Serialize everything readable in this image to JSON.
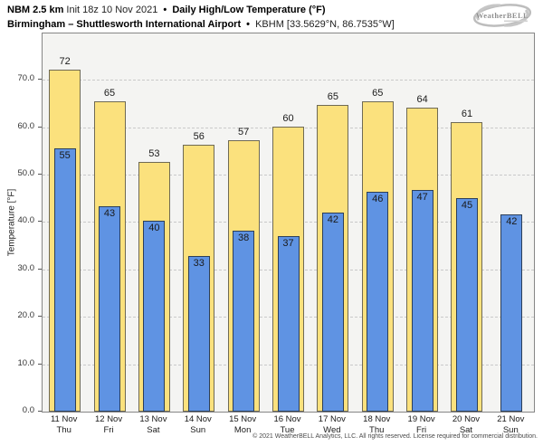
{
  "header": {
    "line1": {
      "model": "NBM 2.5 km",
      "init": "Init 18z 10 Nov 2021",
      "sep": "•",
      "product": "Daily High/Low Temperature (°F)"
    },
    "line2": {
      "station": "Birmingham – Shuttlesworth International Airport",
      "sep": "•",
      "id": "KBHM [33.5629°N, 86.7535°W]"
    }
  },
  "logo": {
    "text": "WeatherBELL"
  },
  "footer": {
    "text": "© 2021 WeatherBELL Analytics, LLC. All rights reserved. License required for commercial distribution."
  },
  "chart_data": {
    "type": "bar",
    "title": "NBM 2.5 km Daily High/Low Temperature (°F) — KBHM",
    "ylabel": "Temperature [°F]",
    "ylim": [
      0,
      79.8
    ],
    "yticks": [
      0,
      10,
      20,
      30,
      40,
      50,
      60,
      70
    ],
    "ytick_labels": [
      "0.0",
      "10.0",
      "20.0",
      "30.0",
      "40.0",
      "50.0",
      "60.0",
      "70.0"
    ],
    "grid": "horizontal-dashed",
    "legend_position": "none",
    "categories": [
      {
        "date": "11 Nov",
        "day": "Thu"
      },
      {
        "date": "12 Nov",
        "day": "Fri"
      },
      {
        "date": "13 Nov",
        "day": "Sat"
      },
      {
        "date": "14 Nov",
        "day": "Sun"
      },
      {
        "date": "15 Nov",
        "day": "Mon"
      },
      {
        "date": "16 Nov",
        "day": "Tue"
      },
      {
        "date": "17 Nov",
        "day": "Wed"
      },
      {
        "date": "18 Nov",
        "day": "Thu"
      },
      {
        "date": "19 Nov",
        "day": "Fri"
      },
      {
        "date": "20 Nov",
        "day": "Sat"
      },
      {
        "date": "21 Nov",
        "day": "Sun"
      }
    ],
    "series": [
      {
        "name": "Daily High",
        "color": "#fbe17d",
        "border": "#6f6a54",
        "values": [
          72,
          65,
          53,
          56,
          57,
          60,
          65,
          65,
          64,
          61,
          null
        ],
        "plot_values": [
          72.2,
          65.4,
          52.6,
          56.4,
          57.2,
          60.2,
          64.7,
          65.4,
          64.2,
          61.0,
          null
        ]
      },
      {
        "name": "Daily Low",
        "color": "#5f93e3",
        "border": "#2d3f58",
        "values": [
          55,
          43,
          40,
          33,
          38,
          37,
          42,
          46,
          47,
          45,
          42
        ],
        "plot_values": [
          55.5,
          43.4,
          40.2,
          32.8,
          38.2,
          37.0,
          42.0,
          46.3,
          46.7,
          45.0,
          41.6
        ]
      }
    ]
  }
}
